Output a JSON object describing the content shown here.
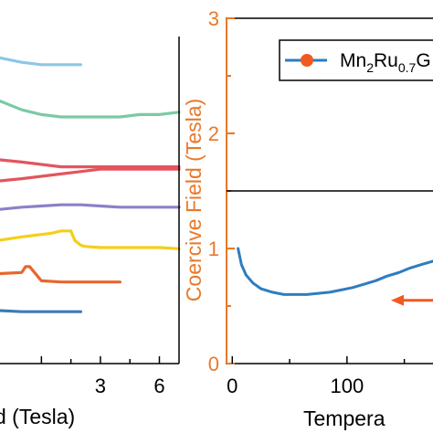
{
  "chart_data": [
    {
      "type": "line",
      "title": "",
      "xlabel": "d (Tesla)",
      "ylabel": "",
      "x_tick_labels": [
        "3",
        "6"
      ],
      "xlim": [
        -2.2,
        7
      ],
      "grid": false,
      "series": [
        {
          "color": "#8ec5e8",
          "x": [
            -2.2,
            -1.0,
            0.0,
            1.0,
            2.0
          ],
          "y": [
            0.5,
            0.7,
            0.8,
            0.8,
            0.8
          ]
        },
        {
          "color": "#7cc9a5",
          "x": [
            -2.2,
            -1.0,
            0.0,
            1.0,
            2.0,
            3.0,
            4.0,
            5.0,
            6.0,
            7.0
          ],
          "y": [
            2.3,
            2.7,
            2.9,
            3.0,
            3.0,
            3.0,
            3.0,
            2.9,
            2.9,
            2.8
          ]
        },
        {
          "color": "#e2555f",
          "x": [
            -2.2,
            -1.0,
            0.0,
            1.0,
            2.0,
            3.0,
            4.0,
            5.0,
            6.0,
            7.0
          ],
          "y": [
            4.8,
            4.9,
            5.0,
            5.1,
            5.1,
            5.1,
            5.1,
            5.1,
            5.1,
            5.1
          ]
        },
        {
          "color": "#e2555f",
          "x": [
            -2.2,
            -1.0,
            0.0,
            1.0,
            2.0,
            3.0,
            4.0,
            5.0,
            6.0,
            7.0
          ],
          "y": [
            5.7,
            5.6,
            5.5,
            5.4,
            5.3,
            5.2,
            5.2,
            5.2,
            5.2,
            5.2
          ]
        },
        {
          "color": "#8b81c7",
          "x": [
            -2.2,
            -1.0,
            0.0,
            1.0,
            2.0,
            3.0,
            4.0,
            5.0,
            6.0,
            7.0
          ],
          "y": [
            6.9,
            6.8,
            6.75,
            6.7,
            6.7,
            6.75,
            6.8,
            6.8,
            6.8,
            6.8
          ]
        },
        {
          "color": "#f4cf1a",
          "x": [
            -2.2,
            -1.0,
            -0.5,
            0.0,
            0.5,
            1.0,
            1.5,
            1.7,
            2.0,
            2.2,
            3.0,
            4.0,
            5.0,
            6.0,
            7.0
          ],
          "y": [
            8.2,
            8.05,
            8.0,
            7.95,
            7.9,
            7.8,
            7.8,
            8.2,
            8.4,
            8.45,
            8.5,
            8.5,
            8.5,
            8.5,
            8.55
          ]
        },
        {
          "color": "#e7662e",
          "x": [
            -2.2,
            -1.0,
            -0.8,
            -0.6,
            0.0,
            1.0,
            2.0,
            3.0,
            4.0
          ],
          "y": [
            9.6,
            9.55,
            9.3,
            9.3,
            9.9,
            9.95,
            9.95,
            9.95,
            9.95
          ]
        },
        {
          "color": "#3d7ab5",
          "x": [
            -2.2,
            -1.0,
            0.0,
            1.0,
            2.0
          ],
          "y": [
            11.15,
            11.2,
            11.2,
            11.2,
            11.2
          ]
        }
      ]
    },
    {
      "type": "line",
      "title": "",
      "xlabel": "Tempera",
      "ylabel": "Coercive Field (Tesla)",
      "y_tick_labels": [
        "0",
        "1",
        "2",
        "3"
      ],
      "x_tick_labels": [
        "0",
        "100"
      ],
      "ylim": [
        0,
        3
      ],
      "xlim": [
        -5,
        175
      ],
      "hline_y": 1.5,
      "grid": false,
      "accent_color": "#e8782a",
      "line_color": "#2e7dbf",
      "arrow_color": "#f05a22",
      "legend": {
        "location": "top-right",
        "label": "Mn",
        "sub1": "2",
        "mid": "Ru",
        "sub2": "0.7",
        "tail": "G"
      },
      "series": [
        {
          "x": [
            5,
            8,
            12,
            18,
            25,
            35,
            45,
            55,
            65,
            75,
            85,
            95,
            105,
            115,
            125,
            135,
            145,
            155,
            165,
            175
          ],
          "y": [
            1.0,
            0.86,
            0.77,
            0.7,
            0.65,
            0.62,
            0.6,
            0.6,
            0.6,
            0.61,
            0.62,
            0.64,
            0.66,
            0.69,
            0.72,
            0.76,
            0.79,
            0.83,
            0.86,
            0.89
          ]
        }
      ]
    }
  ]
}
